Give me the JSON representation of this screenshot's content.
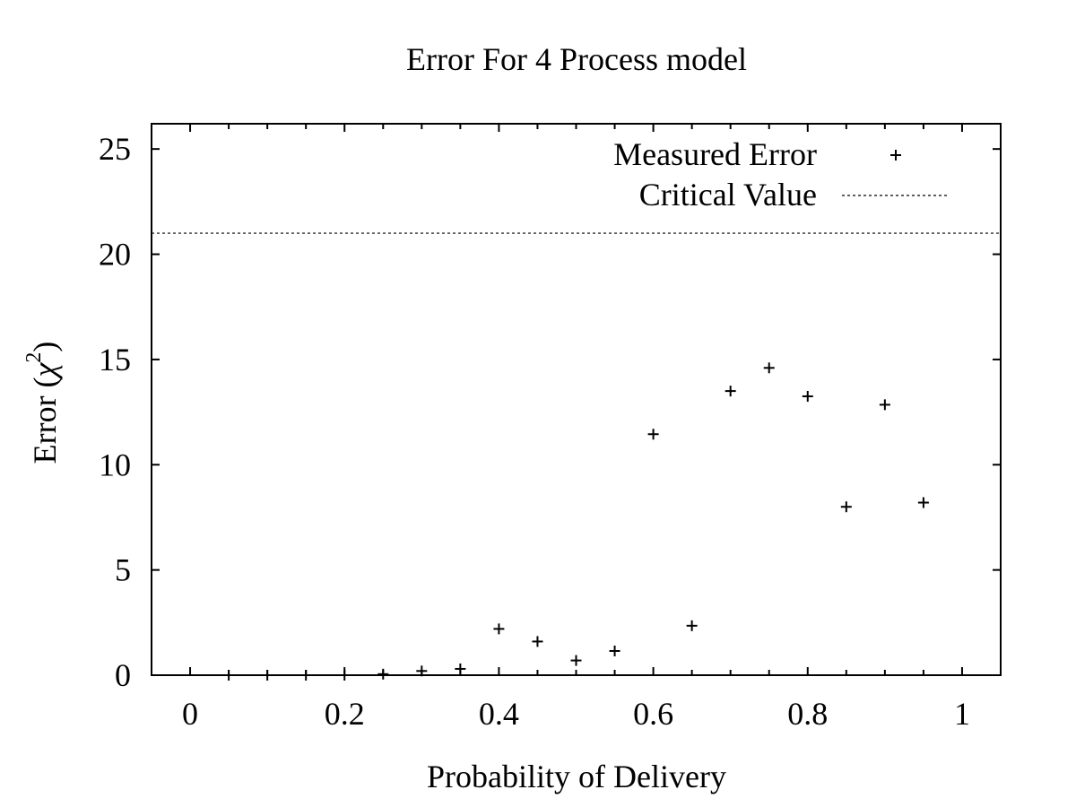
{
  "chart_data": {
    "type": "scatter",
    "title": "Error For 4 Process model",
    "xlabel": "Probability of Delivery",
    "ylabel": {
      "prefix": "Error (",
      "symbol": "χ",
      "superscript": "2",
      "suffix": ")"
    },
    "xlim": [
      -0.05,
      1.05
    ],
    "ylim": [
      0,
      26.2
    ],
    "x_ticks": [
      0,
      0.2,
      0.4,
      0.6,
      0.8,
      1
    ],
    "x_tick_labels": [
      "0",
      "0.2",
      "0.4",
      "0.6",
      "0.8",
      "1"
    ],
    "x_minor_ticks": [
      0.05,
      0.1,
      0.15,
      0.25,
      0.3,
      0.35,
      0.45,
      0.5,
      0.55,
      0.65,
      0.7,
      0.75,
      0.85,
      0.9,
      0.95
    ],
    "y_ticks": [
      0,
      5,
      10,
      15,
      20,
      25
    ],
    "y_tick_labels": [
      "0",
      "5",
      "10",
      "15",
      "20",
      "25"
    ],
    "grid": false,
    "legend_position": "top-right",
    "series": [
      {
        "name": "Measured Error",
        "marker": "plus",
        "x": [
          0.05,
          0.1,
          0.15,
          0.2,
          0.25,
          0.3,
          0.35,
          0.4,
          0.45,
          0.5,
          0.55,
          0.6,
          0.65,
          0.7,
          0.75,
          0.8,
          0.85,
          0.9,
          0.95
        ],
        "y": [
          0,
          0,
          0,
          0,
          0.05,
          0.2,
          0.3,
          2.2,
          1.6,
          0.7,
          1.15,
          11.45,
          2.35,
          13.5,
          14.6,
          13.25,
          8.0,
          12.85,
          8.2
        ]
      },
      {
        "name": "Critical Value",
        "style": "dashed",
        "y": 21.0
      }
    ]
  }
}
